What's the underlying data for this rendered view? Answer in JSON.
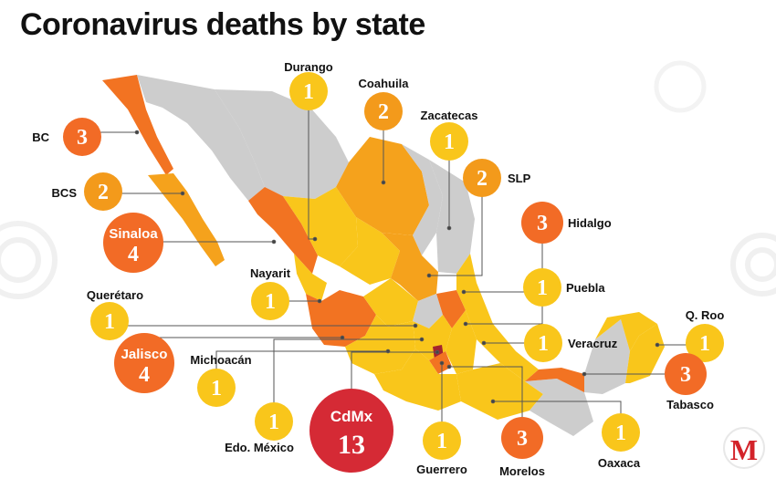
{
  "title": "Coronavirus deaths by state",
  "colors": {
    "one": "#f9c61b",
    "two": "#f39a1b",
    "three": "#f26b26",
    "four": "#f26b26",
    "thirteen": "#d52a35",
    "map_gray": "#cdcdcd",
    "map_yellow": "#f9c61b",
    "map_orange": "#f5a21c",
    "map_dark_orange": "#f27322",
    "map_red": "#a3242f",
    "leader": "#555555"
  },
  "logo_letter": "M",
  "states": [
    {
      "label": "Durango",
      "value": "1",
      "tier": "one"
    },
    {
      "label": "Coahuila",
      "value": "2",
      "tier": "two"
    },
    {
      "label": "Zacatecas",
      "value": "1",
      "tier": "one"
    },
    {
      "label": "BC",
      "value": "3",
      "tier": "three"
    },
    {
      "label": "BCS",
      "value": "2",
      "tier": "two"
    },
    {
      "label": "SLP",
      "value": "2",
      "tier": "two"
    },
    {
      "label": "Sinaloa",
      "value": "4",
      "tier": "four"
    },
    {
      "label": "Hidalgo",
      "value": "3",
      "tier": "three"
    },
    {
      "label": "Nayarit",
      "value": "1",
      "tier": "one"
    },
    {
      "label": "Puebla",
      "value": "1",
      "tier": "one"
    },
    {
      "label": "Querétaro",
      "value": "1",
      "tier": "one"
    },
    {
      "label": "Q. Roo",
      "value": "1",
      "tier": "one"
    },
    {
      "label": "Veracruz",
      "value": "1",
      "tier": "one"
    },
    {
      "label": "Jalisco",
      "value": "4",
      "tier": "four"
    },
    {
      "label": "Tabasco",
      "value": "3",
      "tier": "three"
    },
    {
      "label": "Michoacán",
      "value": "1",
      "tier": "one"
    },
    {
      "label": "Edo. México",
      "value": "1",
      "tier": "one"
    },
    {
      "label": "CdMx",
      "value": "13",
      "tier": "thirteen"
    },
    {
      "label": "Guerrero",
      "value": "1",
      "tier": "one"
    },
    {
      "label": "Morelos",
      "value": "3",
      "tier": "three"
    },
    {
      "label": "Oaxaca",
      "value": "1",
      "tier": "one"
    }
  ]
}
